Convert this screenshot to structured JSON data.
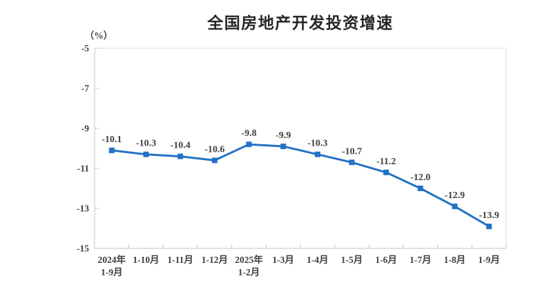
{
  "chart_data": {
    "type": "line",
    "title": "全国房地产开发投资增速",
    "unit_label": "（%）",
    "categories": [
      "2024年\n1-9月",
      "1-10月",
      "1-11月",
      "1-12月",
      "2025年\n1-2月",
      "1-3月",
      "1-4月",
      "1-5月",
      "1-6月",
      "1-7月",
      "1-8月",
      "1-9月"
    ],
    "values": [
      -10.1,
      -10.3,
      -10.4,
      -10.6,
      -9.8,
      -9.9,
      -10.3,
      -10.7,
      -11.2,
      -12.0,
      -12.9,
      -13.9
    ],
    "data_labels": [
      "-10.1",
      "-10.3",
      "-10.4",
      "-10.6",
      "-9.8",
      "-9.9",
      "-10.3",
      "-10.7",
      "-11.2",
      "-12.0",
      "-12.9",
      "-13.9"
    ],
    "ylim": [
      -15,
      -5
    ],
    "yticks": [
      -5,
      -7,
      -9,
      -11,
      -13,
      -15
    ],
    "grid": false,
    "legend": "none",
    "colors": {
      "line": "#2472C4",
      "marker": "#2472C4",
      "axis": "#C6C6C6",
      "border": "#DCDCDC",
      "text": "#3f3f3f",
      "title": "#262626"
    }
  }
}
